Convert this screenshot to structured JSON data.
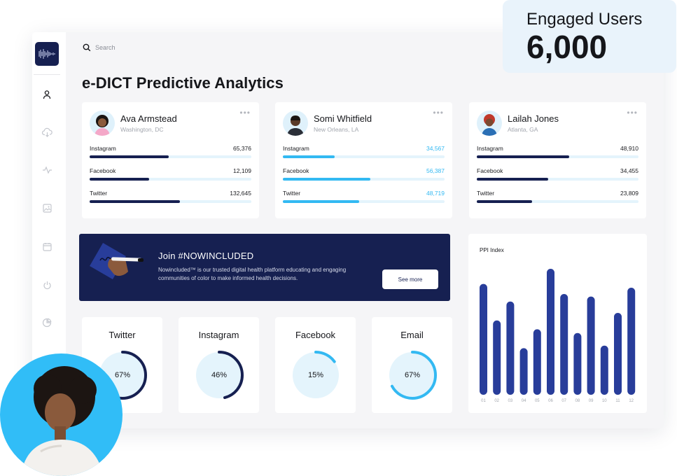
{
  "search": {
    "placeholder": "Search"
  },
  "page_title": "e-DICT Predictive Analytics",
  "engaged": {
    "label": "Engaged Users",
    "value": "6,000"
  },
  "sidebar": {
    "icons": [
      "user-icon",
      "cloud-download-icon",
      "activity-icon",
      "image-icon",
      "calendar-icon",
      "power-icon",
      "pie-chart-icon"
    ]
  },
  "people": [
    {
      "name": "Ava Armstead",
      "location": "Washington, DC",
      "metrics": [
        {
          "label": "Instagram",
          "value": "65,376",
          "fill": 0.49,
          "color": "#162051",
          "value_color": "#1b1c20"
        },
        {
          "label": "Facebook",
          "value": "12,109",
          "fill": 0.37,
          "color": "#162051",
          "value_color": "#1b1c20"
        },
        {
          "label": "Twitter",
          "value": "132,645",
          "fill": 0.56,
          "color": "#162051",
          "value_color": "#1b1c20"
        }
      ]
    },
    {
      "name": "Somi Whitfield",
      "location": "New Orleans, LA",
      "metrics": [
        {
          "label": "Instagram",
          "value": "34,567",
          "fill": 0.32,
          "color": "#33b9f2",
          "value_color": "#33b9f2"
        },
        {
          "label": "Facebook",
          "value": "56,387",
          "fill": 0.54,
          "color": "#33b9f2",
          "value_color": "#33b9f2"
        },
        {
          "label": "Twitter",
          "value": "48,719",
          "fill": 0.47,
          "color": "#33b9f2",
          "value_color": "#33b9f2"
        }
      ]
    },
    {
      "name": "Lailah Jones",
      "location": "Atlanta, GA",
      "metrics": [
        {
          "label": "Instagram",
          "value": "48,910",
          "fill": 0.57,
          "color": "#162051",
          "value_color": "#1b1c20"
        },
        {
          "label": "Facebook",
          "value": "34,455",
          "fill": 0.44,
          "color": "#162051",
          "value_color": "#1b1c20"
        },
        {
          "label": "Twitter",
          "value": "23,809",
          "fill": 0.34,
          "color": "#162051",
          "value_color": "#1b1c20"
        }
      ]
    }
  ],
  "banner": {
    "title": "Join #NOWINCLUDED",
    "text": "Nowincluded™ is our trusted digital health platform educating and engaging communities of color to make informed health decisions.",
    "button": "See more"
  },
  "stats": [
    {
      "label": "Twitter",
      "percent": "67%",
      "value": 0.67,
      "ring": "#162051"
    },
    {
      "label": "Instagram",
      "percent": "46%",
      "value": 0.46,
      "ring": "#162051"
    },
    {
      "label": "Facebook",
      "percent": "15%",
      "value": 0.15,
      "ring": "#33b9f2"
    },
    {
      "label": "Email",
      "percent": "67%",
      "value": 0.67,
      "ring": "#33b9f2"
    }
  ],
  "colors": {
    "navy": "#162051",
    "blue": "#33b9f2",
    "light_blue": "#e4f4fc",
    "bar": "#283d9a"
  },
  "chart_data": {
    "type": "bar",
    "title": "PPI Index",
    "categories": [
      "01",
      "02",
      "03",
      "04",
      "05",
      "06",
      "07",
      "08",
      "09",
      "10",
      "11",
      "12"
    ],
    "values": [
      88,
      59,
      74,
      37,
      52,
      100,
      80,
      49,
      78,
      39,
      65,
      85
    ],
    "ylim": [
      0,
      100
    ],
    "grid": false
  }
}
